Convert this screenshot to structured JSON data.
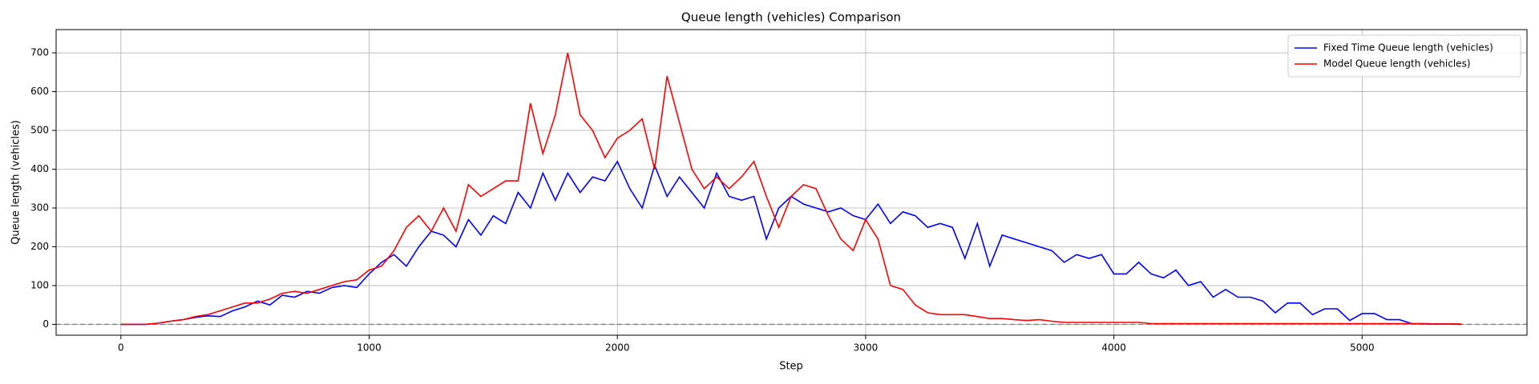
{
  "chart_data": {
    "type": "line",
    "title": "Queue length (vehicles) Comparison",
    "x_label": "Step",
    "y_label": "Queue length (vehicles)",
    "x": [
      0,
      50,
      100,
      150,
      200,
      250,
      300,
      350,
      400,
      450,
      500,
      550,
      600,
      650,
      700,
      750,
      800,
      850,
      900,
      950,
      1000,
      1050,
      1100,
      1150,
      1200,
      1250,
      1300,
      1350,
      1400,
      1450,
      1500,
      1550,
      1600,
      1650,
      1700,
      1750,
      1800,
      1850,
      1900,
      1950,
      2000,
      2050,
      2100,
      2150,
      2200,
      2250,
      2300,
      2350,
      2400,
      2450,
      2500,
      2550,
      2600,
      2650,
      2700,
      2750,
      2800,
      2850,
      2900,
      2950,
      3000,
      3050,
      3100,
      3150,
      3200,
      3250,
      3300,
      3350,
      3400,
      3450,
      3500,
      3550,
      3600,
      3650,
      3700,
      3750,
      3800,
      3850,
      3900,
      3950,
      4000,
      4050,
      4100,
      4150,
      4200,
      4250,
      4300,
      4350,
      4400,
      4450,
      4500,
      4550,
      4600,
      4650,
      4700,
      4750,
      4800,
      4850,
      4900,
      4950,
      5000,
      5050,
      5100,
      5150,
      5200,
      5250,
      5300,
      5350,
      5400
    ],
    "series": [
      {
        "name": "Fixed Time Queue length (vehicles)",
        "color": "#0000ff",
        "values": [
          0,
          0,
          0,
          3,
          8,
          12,
          18,
          22,
          20,
          35,
          45,
          60,
          50,
          75,
          70,
          85,
          80,
          95,
          100,
          95,
          130,
          160,
          180,
          150,
          200,
          240,
          230,
          200,
          270,
          230,
          280,
          260,
          340,
          300,
          390,
          320,
          390,
          340,
          380,
          370,
          420,
          350,
          300,
          410,
          330,
          380,
          340,
          300,
          390,
          330,
          320,
          330,
          220,
          300,
          330,
          310,
          300,
          290,
          300,
          280,
          270,
          310,
          260,
          290,
          280,
          250,
          260,
          250,
          170,
          260,
          150,
          230,
          220,
          210,
          200,
          190,
          160,
          180,
          170,
          180,
          130,
          130,
          160,
          130,
          120,
          140,
          100,
          110,
          70,
          90,
          70,
          70,
          60,
          30,
          55,
          55,
          25,
          40,
          40,
          10,
          28,
          28,
          12,
          12,
          2,
          2,
          1,
          1,
          0
        ]
      },
      {
        "name": "Model Queue length (vehicles)",
        "color": "#ff0000",
        "values": [
          0,
          0,
          0,
          3,
          8,
          12,
          20,
          25,
          35,
          45,
          55,
          55,
          65,
          80,
          85,
          80,
          90,
          100,
          110,
          115,
          140,
          150,
          190,
          250,
          280,
          240,
          300,
          240,
          360,
          330,
          350,
          370,
          370,
          570,
          440,
          540,
          700,
          540,
          500,
          430,
          480,
          500,
          530,
          400,
          640,
          520,
          400,
          350,
          380,
          350,
          380,
          420,
          330,
          250,
          330,
          360,
          350,
          280,
          220,
          190,
          270,
          220,
          100,
          90,
          50,
          30,
          25,
          25,
          25,
          20,
          15,
          15,
          12,
          10,
          12,
          8,
          5,
          5,
          5,
          5,
          5,
          5,
          5,
          2,
          2,
          2,
          2,
          2,
          2,
          2,
          2,
          2,
          2,
          2,
          2,
          2,
          2,
          2,
          2,
          2,
          2,
          2,
          2,
          2,
          2,
          1,
          1,
          1,
          1
        ]
      }
    ],
    "xlim": [
      -261,
      5664
    ],
    "ylim": [
      -28,
      760
    ],
    "xticks": [
      0,
      1000,
      2000,
      3000,
      4000,
      5000
    ],
    "yticks": [
      0,
      100,
      200,
      300,
      400,
      500,
      600,
      700
    ],
    "grid": true,
    "legend": "upper right",
    "hline": 0
  }
}
